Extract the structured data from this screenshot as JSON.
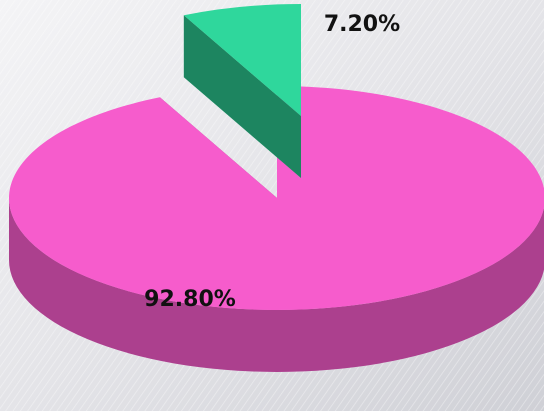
{
  "chart_data": {
    "type": "pie",
    "categories": [
      null,
      null
    ],
    "values": [
      92.8,
      7.2
    ],
    "value_labels": [
      "92.80%",
      "7.20%"
    ],
    "colors": [
      "#f65ccc",
      "#2fd79c"
    ]
  }
}
